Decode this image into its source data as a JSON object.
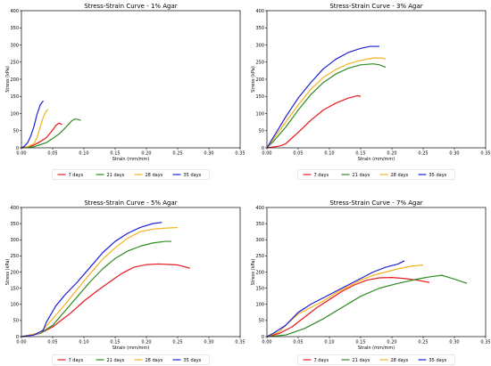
{
  "chart_data": [
    {
      "type": "line",
      "title": "Stress-Strain Curve - 1% Agar",
      "xlabel": "Strain (mm/mm)",
      "ylabel": "Stress (kPa)",
      "xlim": [
        0,
        0.35
      ],
      "ylim": [
        0,
        400
      ],
      "xticks": [
        "0.00",
        "0.05",
        "0.10",
        "0.15",
        "0.20",
        "0.25",
        "0.30",
        "0.35"
      ],
      "yticks": [
        "0",
        "50",
        "100",
        "150",
        "200",
        "250",
        "300",
        "350",
        "400"
      ],
      "legend_position": "below",
      "series": [
        {
          "name": "7 days",
          "color": "#e8181e",
          "points": [
            [
              0,
              0
            ],
            [
              0.01,
              2
            ],
            [
              0.02,
              8
            ],
            [
              0.03,
              18
            ],
            [
              0.04,
              30
            ],
            [
              0.05,
              52
            ],
            [
              0.055,
              65
            ],
            [
              0.06,
              72
            ],
            [
              0.065,
              68
            ]
          ]
        },
        {
          "name": "21 days",
          "color": "#2e8b22",
          "points": [
            [
              0,
              0
            ],
            [
              0.02,
              3
            ],
            [
              0.04,
              15
            ],
            [
              0.06,
              40
            ],
            [
              0.07,
              58
            ],
            [
              0.08,
              78
            ],
            [
              0.085,
              84
            ],
            [
              0.09,
              83
            ],
            [
              0.095,
              80
            ]
          ]
        },
        {
          "name": "28 days",
          "color": "#f5b21d",
          "points": [
            [
              0,
              0
            ],
            [
              0.01,
              3
            ],
            [
              0.02,
              12
            ],
            [
              0.025,
              30
            ],
            [
              0.03,
              60
            ],
            [
              0.035,
              90
            ],
            [
              0.04,
              108
            ],
            [
              0.043,
              112
            ]
          ]
        },
        {
          "name": "35 days",
          "color": "#1f1fd6",
          "points": [
            [
              0,
              0
            ],
            [
              0.005,
              5
            ],
            [
              0.01,
              15
            ],
            [
              0.015,
              35
            ],
            [
              0.02,
              62
            ],
            [
              0.025,
              98
            ],
            [
              0.03,
              125
            ],
            [
              0.035,
              137
            ]
          ]
        }
      ]
    },
    {
      "type": "line",
      "title": "Stress-Strain Curve - 3% Agar",
      "xlabel": "Strain (mm/mm)",
      "ylabel": "Stress (kPa)",
      "xlim": [
        0,
        0.35
      ],
      "ylim": [
        0,
        400
      ],
      "xticks": [
        "0.00",
        "0.05",
        "0.10",
        "0.15",
        "0.20",
        "0.25",
        "0.30",
        "0.35"
      ],
      "yticks": [
        "0",
        "50",
        "100",
        "150",
        "200",
        "250",
        "300",
        "350",
        "400"
      ],
      "legend_position": "below",
      "series": [
        {
          "name": "7 days",
          "color": "#e8181e",
          "points": [
            [
              0,
              0
            ],
            [
              0.02,
              5
            ],
            [
              0.03,
              12
            ],
            [
              0.05,
              45
            ],
            [
              0.07,
              80
            ],
            [
              0.09,
              110
            ],
            [
              0.11,
              130
            ],
            [
              0.13,
              145
            ],
            [
              0.145,
              152
            ],
            [
              0.15,
              150
            ]
          ]
        },
        {
          "name": "21 days",
          "color": "#2e8b22",
          "points": [
            [
              0,
              0
            ],
            [
              0.01,
              18
            ],
            [
              0.03,
              60
            ],
            [
              0.05,
              110
            ],
            [
              0.07,
              155
            ],
            [
              0.09,
              190
            ],
            [
              0.11,
              215
            ],
            [
              0.13,
              232
            ],
            [
              0.15,
              242
            ],
            [
              0.17,
              245
            ],
            [
              0.18,
              242
            ],
            [
              0.19,
              235
            ]
          ]
        },
        {
          "name": "28 days",
          "color": "#f5b21d",
          "points": [
            [
              0,
              0
            ],
            [
              0.01,
              25
            ],
            [
              0.03,
              75
            ],
            [
              0.05,
              125
            ],
            [
              0.07,
              170
            ],
            [
              0.09,
              205
            ],
            [
              0.11,
              228
            ],
            [
              0.13,
              245
            ],
            [
              0.15,
              255
            ],
            [
              0.17,
              262
            ],
            [
              0.185,
              262
            ],
            [
              0.19,
              258
            ]
          ]
        },
        {
          "name": "35 days",
          "color": "#1f1fd6",
          "points": [
            [
              0,
              0
            ],
            [
              0.01,
              30
            ],
            [
              0.03,
              90
            ],
            [
              0.05,
              145
            ],
            [
              0.07,
              190
            ],
            [
              0.09,
              230
            ],
            [
              0.11,
              258
            ],
            [
              0.13,
              278
            ],
            [
              0.15,
              290
            ],
            [
              0.165,
              296
            ],
            [
              0.18,
              296
            ]
          ]
        }
      ]
    },
    {
      "type": "line",
      "title": "Stress-Strain Curve - 5% Agar",
      "xlabel": "Strain (mm/mm)",
      "ylabel": "Stress (kPa)",
      "xlim": [
        0,
        0.35
      ],
      "ylim": [
        0,
        400
      ],
      "xticks": [
        "0.00",
        "0.05",
        "0.10",
        "0.15",
        "0.20",
        "0.25",
        "0.30",
        "0.35"
      ],
      "yticks": [
        "0",
        "50",
        "100",
        "150",
        "200",
        "250",
        "300",
        "350",
        "400"
      ],
      "legend_position": "below",
      "series": [
        {
          "name": "7 days",
          "color": "#e8181e",
          "points": [
            [
              0,
              0
            ],
            [
              0.03,
              10
            ],
            [
              0.05,
              30
            ],
            [
              0.08,
              75
            ],
            [
              0.1,
              110
            ],
            [
              0.12,
              140
            ],
            [
              0.14,
              168
            ],
            [
              0.16,
              195
            ],
            [
              0.18,
              215
            ],
            [
              0.2,
              223
            ],
            [
              0.22,
              225
            ],
            [
              0.25,
              222
            ],
            [
              0.27,
              212
            ]
          ]
        },
        {
          "name": "21 days",
          "color": "#2e8b22",
          "points": [
            [
              0,
              0
            ],
            [
              0.03,
              10
            ],
            [
              0.05,
              35
            ],
            [
              0.07,
              80
            ],
            [
              0.09,
              125
            ],
            [
              0.11,
              170
            ],
            [
              0.13,
              210
            ],
            [
              0.15,
              242
            ],
            [
              0.17,
              265
            ],
            [
              0.19,
              280
            ],
            [
              0.21,
              290
            ],
            [
              0.23,
              295
            ],
            [
              0.24,
              295
            ]
          ]
        },
        {
          "name": "28 days",
          "color": "#f5b21d",
          "points": [
            [
              0,
              0
            ],
            [
              0.03,
              12
            ],
            [
              0.05,
              55
            ],
            [
              0.07,
              100
            ],
            [
              0.09,
              148
            ],
            [
              0.11,
              195
            ],
            [
              0.13,
              240
            ],
            [
              0.15,
              275
            ],
            [
              0.17,
              305
            ],
            [
              0.19,
              325
            ],
            [
              0.21,
              333
            ],
            [
              0.23,
              336
            ],
            [
              0.25,
              338
            ]
          ]
        },
        {
          "name": "35 days",
          "color": "#1f1fd6",
          "points": [
            [
              0,
              0
            ],
            [
              0.02,
              5
            ],
            [
              0.035,
              20
            ],
            [
              0.04,
              45
            ],
            [
              0.055,
              95
            ],
            [
              0.07,
              130
            ],
            [
              0.09,
              170
            ],
            [
              0.11,
              215
            ],
            [
              0.13,
              260
            ],
            [
              0.15,
              295
            ],
            [
              0.17,
              320
            ],
            [
              0.19,
              338
            ],
            [
              0.21,
              350
            ],
            [
              0.225,
              354
            ]
          ]
        }
      ]
    },
    {
      "type": "line",
      "title": "Stress-Strain Curve - 7% Agar",
      "xlabel": "Strain (mm/mm)",
      "ylabel": "Stress (kPa)",
      "xlim": [
        0,
        0.35
      ],
      "ylim": [
        0,
        400
      ],
      "xticks": [
        "0.00",
        "0.05",
        "0.10",
        "0.15",
        "0.20",
        "0.25",
        "0.30",
        "0.35"
      ],
      "yticks": [
        "0",
        "50",
        "100",
        "150",
        "200",
        "250",
        "300",
        "350",
        "400"
      ],
      "legend_position": "below",
      "series": [
        {
          "name": "7 days",
          "color": "#e8181e",
          "points": [
            [
              0,
              0
            ],
            [
              0.02,
              10
            ],
            [
              0.04,
              30
            ],
            [
              0.06,
              60
            ],
            [
              0.08,
              90
            ],
            [
              0.1,
              115
            ],
            [
              0.12,
              140
            ],
            [
              0.14,
              160
            ],
            [
              0.16,
              175
            ],
            [
              0.18,
              182
            ],
            [
              0.2,
              183
            ],
            [
              0.22,
              180
            ],
            [
              0.24,
              175
            ],
            [
              0.26,
              168
            ]
          ]
        },
        {
          "name": "21 days",
          "color": "#2e8b22",
          "points": [
            [
              0,
              0
            ],
            [
              0.03,
              5
            ],
            [
              0.06,
              25
            ],
            [
              0.09,
              55
            ],
            [
              0.12,
              90
            ],
            [
              0.15,
              125
            ],
            [
              0.18,
              150
            ],
            [
              0.21,
              165
            ],
            [
              0.24,
              178
            ],
            [
              0.26,
              185
            ],
            [
              0.28,
              190
            ],
            [
              0.3,
              178
            ],
            [
              0.32,
              165
            ]
          ]
        },
        {
          "name": "28 days",
          "color": "#f5b21d",
          "points": [
            [
              0,
              0
            ],
            [
              0.02,
              15
            ],
            [
              0.03,
              35
            ],
            [
              0.05,
              70
            ],
            [
              0.07,
              90
            ],
            [
              0.09,
              110
            ],
            [
              0.11,
              135
            ],
            [
              0.13,
              155
            ],
            [
              0.15,
              175
            ],
            [
              0.17,
              190
            ],
            [
              0.19,
              200
            ],
            [
              0.21,
              210
            ],
            [
              0.23,
              218
            ],
            [
              0.25,
              222
            ]
          ]
        },
        {
          "name": "35 days",
          "color": "#1f1fd6",
          "points": [
            [
              0,
              0
            ],
            [
              0.01,
              10
            ],
            [
              0.03,
              35
            ],
            [
              0.05,
              75
            ],
            [
              0.07,
              100
            ],
            [
              0.09,
              120
            ],
            [
              0.11,
              140
            ],
            [
              0.13,
              160
            ],
            [
              0.15,
              180
            ],
            [
              0.17,
              200
            ],
            [
              0.19,
              215
            ],
            [
              0.21,
              225
            ],
            [
              0.22,
              235
            ]
          ]
        }
      ]
    }
  ]
}
